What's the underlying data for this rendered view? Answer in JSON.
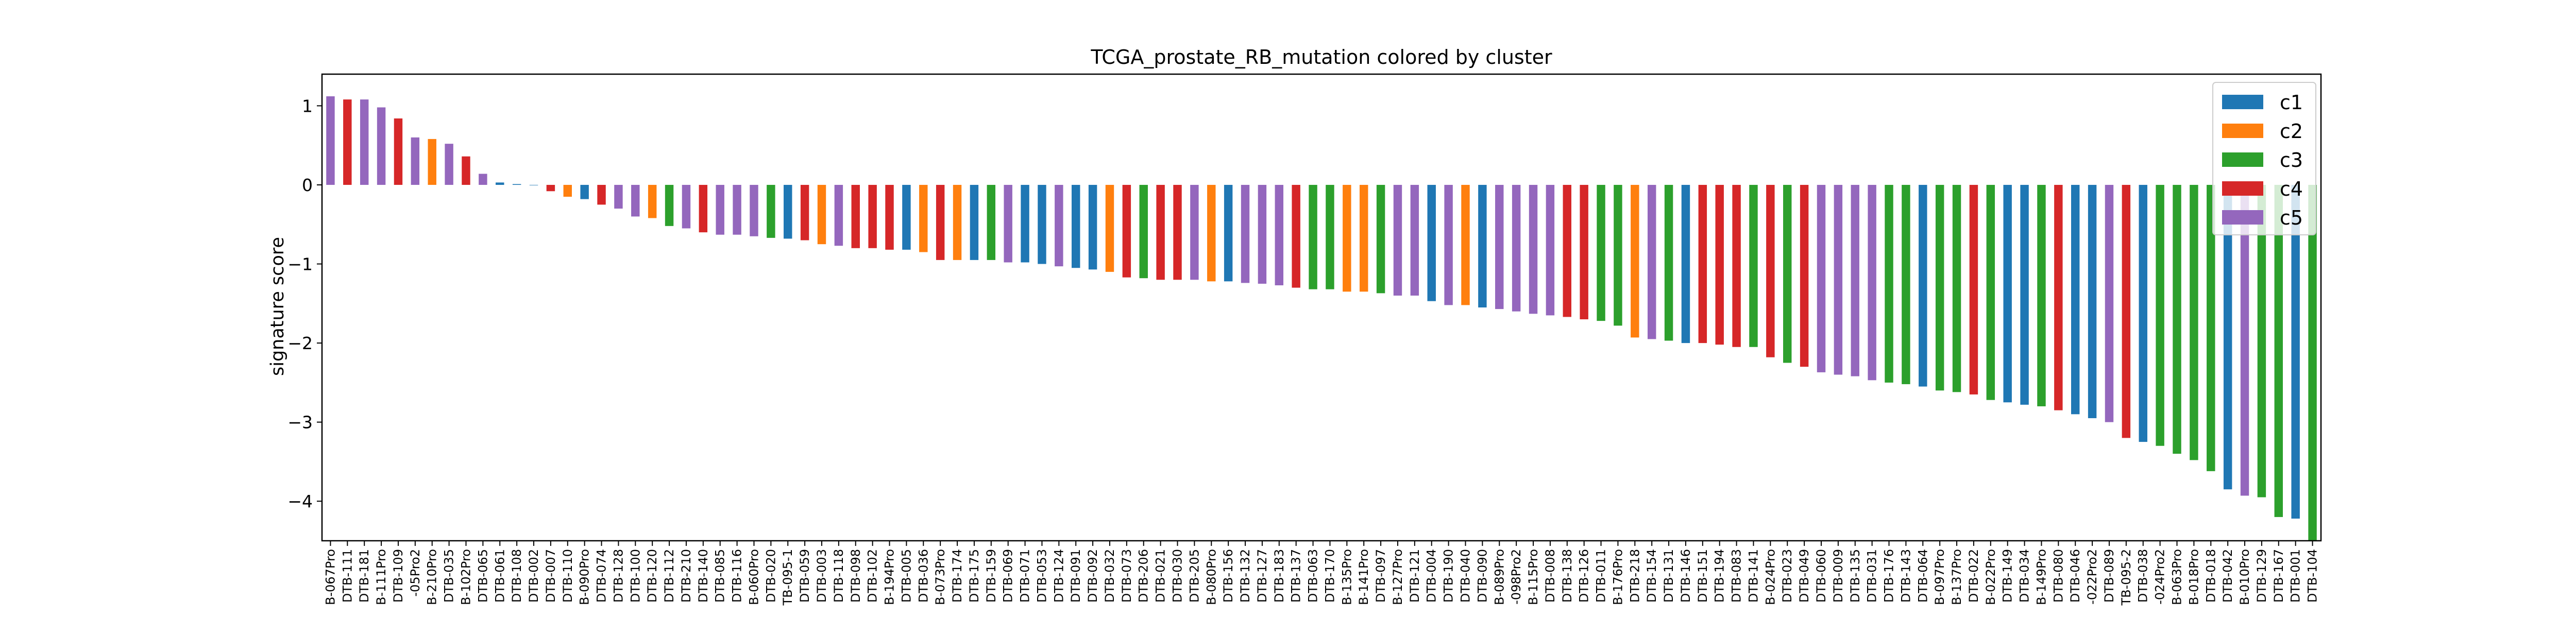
{
  "chart_data": {
    "type": "bar",
    "title": "TCGA_prostate_RB_mutation colored by cluster",
    "xlabel": "",
    "ylabel": "signature score",
    "ylim": [
      -4.5,
      1.4
    ],
    "yticks": [
      -4,
      -3,
      -2,
      -1,
      0,
      1
    ],
    "grid": false,
    "legend_position": "top-right",
    "legend": [
      {
        "name": "c1",
        "color": "#1f77b4"
      },
      {
        "name": "c2",
        "color": "#ff7f0e"
      },
      {
        "name": "c3",
        "color": "#2ca02c"
      },
      {
        "name": "c4",
        "color": "#d62728"
      },
      {
        "name": "c5",
        "color": "#9467bd"
      }
    ],
    "categories": [
      "B-067Pro",
      "DTB-111",
      "DTB-181",
      "B-111Pro",
      "DTB-109",
      "-05Pro2",
      "B-210Pro",
      "DTB-035",
      "B-102Pro",
      "DTB-065",
      "DTB-061",
      "DTB-108",
      "DTB-002",
      "DTB-007",
      "DTB-110",
      "B-090Pro",
      "DTB-074",
      "DTB-128",
      "DTB-100",
      "DTB-120",
      "DTB-112",
      "DTB-210",
      "DTB-140",
      "DTB-085",
      "DTB-116",
      "B-060Pro",
      "DTB-020",
      "TB-095-1",
      "DTB-059",
      "DTB-003",
      "DTB-118",
      "DTB-098",
      "DTB-102",
      "B-194Pro",
      "DTB-005",
      "DTB-036",
      "B-073Pro",
      "DTB-174",
      "DTB-175",
      "DTB-159",
      "DTB-069",
      "DTB-071",
      "DTB-053",
      "DTB-124",
      "DTB-091",
      "DTB-092",
      "DTB-032",
      "DTB-073",
      "DTB-206",
      "DTB-021",
      "DTB-030",
      "DTB-205",
      "B-080Pro",
      "DTB-156",
      "DTB-132",
      "DTB-127",
      "DTB-183",
      "DTB-137",
      "DTB-063",
      "DTB-170",
      "B-135Pro",
      "B-141Pro",
      "DTB-097",
      "B-127Pro",
      "DTB-121",
      "DTB-004",
      "DTB-190",
      "DTB-040",
      "DTB-090",
      "B-089Pro",
      "-098Pro2",
      "B-115Pro",
      "DTB-008",
      "DTB-138",
      "DTB-126",
      "DTB-011",
      "B-176Pro",
      "DTB-218",
      "DTB-154",
      "DTB-131",
      "DTB-146",
      "DTB-151",
      "DTB-194",
      "DTB-083",
      "DTB-141",
      "B-024Pro",
      "DTB-023",
      "DTB-049",
      "DTB-060",
      "DTB-009",
      "DTB-135",
      "DTB-031",
      "DTB-176",
      "DTB-143",
      "DTB-064",
      "B-097Pro",
      "B-137Pro",
      "DTB-022",
      "B-022Pro",
      "DTB-149",
      "DTB-034",
      "B-149Pro",
      "DTB-080",
      "DTB-046",
      "-022Pro2",
      "DTB-089",
      "TB-095-2",
      "DTB-038",
      "-024Pro2",
      "B-063Pro",
      "B-018Pro",
      "DTB-018",
      "DTB-042",
      "B-010Pro",
      "DTB-129",
      "DTB-167",
      "DTB-001",
      "DTB-104"
    ],
    "values": [
      1.12,
      1.08,
      1.08,
      0.98,
      0.84,
      0.6,
      0.58,
      0.52,
      0.36,
      0.14,
      0.03,
      0.01,
      0.0,
      -0.08,
      -0.15,
      -0.18,
      -0.25,
      -0.3,
      -0.4,
      -0.42,
      -0.52,
      -0.55,
      -0.6,
      -0.63,
      -0.63,
      -0.65,
      -0.67,
      -0.68,
      -0.7,
      -0.75,
      -0.77,
      -0.8,
      -0.8,
      -0.82,
      -0.82,
      -0.85,
      -0.95,
      -0.95,
      -0.95,
      -0.95,
      -0.98,
      -0.98,
      -1.0,
      -1.03,
      -1.05,
      -1.07,
      -1.1,
      -1.17,
      -1.18,
      -1.2,
      -1.2,
      -1.2,
      -1.22,
      -1.22,
      -1.24,
      -1.25,
      -1.27,
      -1.3,
      -1.32,
      -1.32,
      -1.35,
      -1.35,
      -1.37,
      -1.4,
      -1.4,
      -1.47,
      -1.52,
      -1.52,
      -1.55,
      -1.57,
      -1.6,
      -1.63,
      -1.65,
      -1.67,
      -1.7,
      -1.72,
      -1.78,
      -1.93,
      -1.95,
      -1.97,
      -2.0,
      -2.0,
      -2.02,
      -2.05,
      -2.05,
      -2.18,
      -2.25,
      -2.3,
      -2.37,
      -2.4,
      -2.42,
      -2.47,
      -2.5,
      -2.52,
      -2.55,
      -2.6,
      -2.62,
      -2.65,
      -2.72,
      -2.75,
      -2.78,
      -2.8,
      -2.85,
      -2.9,
      -2.95,
      -3.0,
      -3.2,
      -3.25,
      -3.3,
      -3.4,
      -3.48,
      -3.62,
      -3.85,
      -3.93,
      -3.95,
      -4.2,
      -4.22,
      -4.5
    ],
    "clusters": [
      "c5",
      "c4",
      "c5",
      "c5",
      "c4",
      "c5",
      "c2",
      "c5",
      "c4",
      "c5",
      "c1",
      "c1",
      "c1",
      "c4",
      "c2",
      "c1",
      "c4",
      "c5",
      "c5",
      "c2",
      "c3",
      "c5",
      "c4",
      "c5",
      "c5",
      "c5",
      "c3",
      "c1",
      "c4",
      "c2",
      "c5",
      "c4",
      "c4",
      "c4",
      "c1",
      "c2",
      "c4",
      "c2",
      "c1",
      "c3",
      "c5",
      "c1",
      "c1",
      "c5",
      "c1",
      "c1",
      "c2",
      "c4",
      "c3",
      "c4",
      "c4",
      "c5",
      "c2",
      "c1",
      "c5",
      "c5",
      "c5",
      "c4",
      "c3",
      "c3",
      "c2",
      "c2",
      "c3",
      "c5",
      "c5",
      "c1",
      "c5",
      "c2",
      "c1",
      "c5",
      "c5",
      "c5",
      "c5",
      "c4",
      "c4",
      "c3",
      "c3",
      "c2",
      "c5",
      "c3",
      "c1",
      "c4",
      "c4",
      "c4",
      "c3",
      "c4",
      "c3",
      "c4",
      "c5",
      "c5",
      "c5",
      "c5",
      "c3",
      "c3",
      "c1",
      "c3",
      "c3",
      "c4",
      "c3",
      "c1",
      "c1",
      "c3",
      "c4",
      "c1",
      "c1",
      "c5",
      "c4",
      "c1",
      "c3",
      "c3",
      "c3",
      "c3",
      "c1",
      "c5",
      "c3",
      "c3",
      "c1",
      "c3"
    ]
  }
}
